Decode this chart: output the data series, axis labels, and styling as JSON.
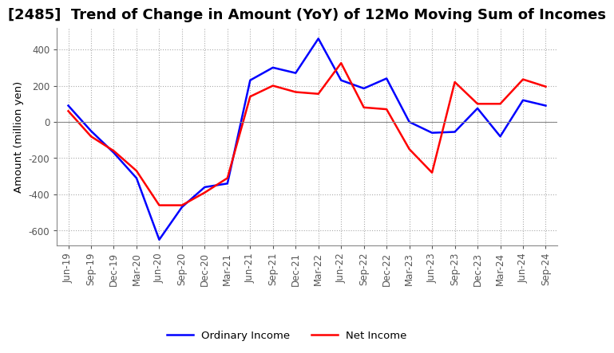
{
  "title": "[2485]  Trend of Change in Amount (YoY) of 12Mo Moving Sum of Incomes",
  "ylabel": "Amount (million yen)",
  "x_labels": [
    "Jun-19",
    "Sep-19",
    "Dec-19",
    "Mar-20",
    "Jun-20",
    "Sep-20",
    "Dec-20",
    "Mar-21",
    "Jun-21",
    "Sep-21",
    "Dec-21",
    "Mar-22",
    "Jun-22",
    "Sep-22",
    "Dec-22",
    "Mar-23",
    "Jun-23",
    "Sep-23",
    "Dec-23",
    "Mar-24",
    "Jun-24",
    "Sep-24"
  ],
  "ordinary_income": [
    90,
    -50,
    -170,
    -310,
    -650,
    -470,
    -360,
    -340,
    230,
    300,
    270,
    460,
    230,
    185,
    240,
    0,
    -60,
    -55,
    75,
    -80,
    120,
    90
  ],
  "net_income": [
    60,
    -80,
    -160,
    -270,
    -460,
    -460,
    -390,
    -310,
    140,
    200,
    165,
    155,
    325,
    80,
    70,
    -150,
    -280,
    220,
    100,
    100,
    235,
    195
  ],
  "ordinary_color": "#0000FF",
  "net_color": "#FF0000",
  "ylim": [
    -680,
    520
  ],
  "yticks": [
    -600,
    -400,
    -200,
    0,
    200,
    400
  ],
  "grid_color": "#AAAAAA",
  "bg_color": "#FFFFFF",
  "plot_bg_color": "#FFFFFF",
  "legend_labels": [
    "Ordinary Income",
    "Net Income"
  ],
  "title_fontsize": 13,
  "tick_fontsize": 8.5,
  "ylabel_fontsize": 9.5
}
